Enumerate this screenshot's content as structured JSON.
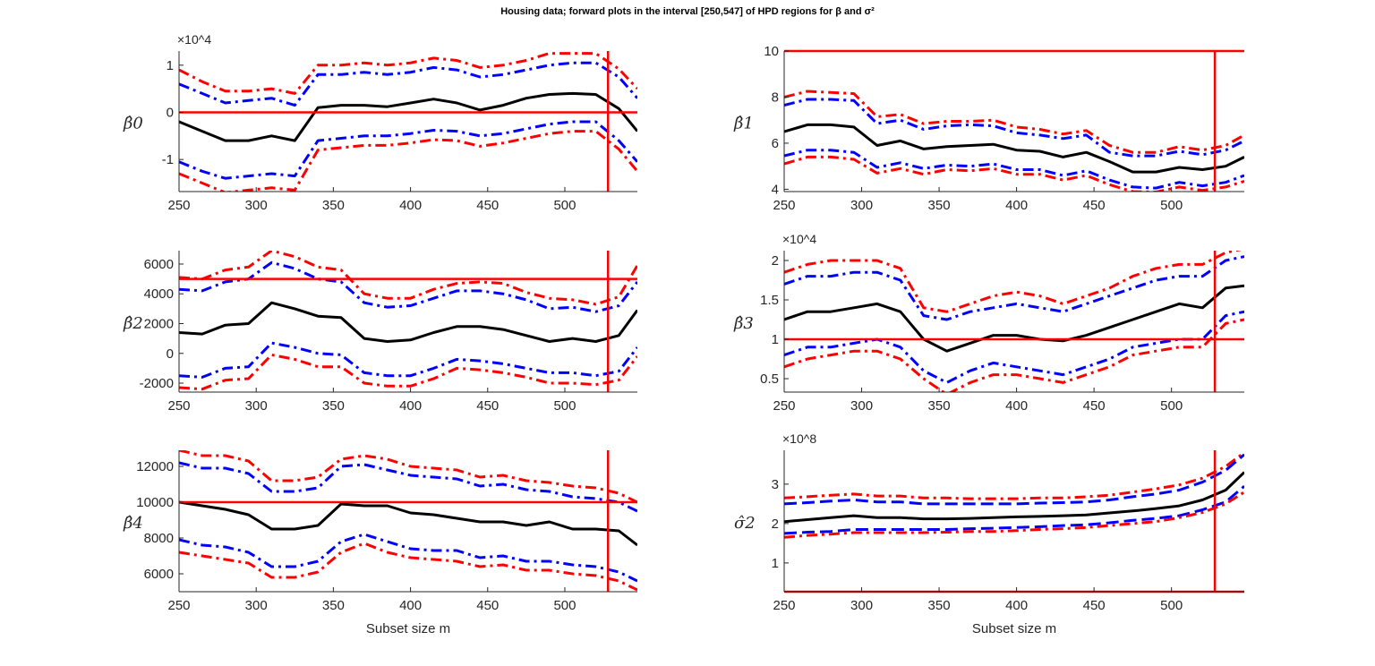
{
  "title": "Housing data; forward plots in the interval [250,547]  of HPD regions for β and σ²",
  "chart_data": [
    {
      "type": "line",
      "ylabel": "β̂0",
      "exponent": "×10^4",
      "xlabel": "",
      "xlim": [
        250,
        547
      ],
      "ylim": [
        -1.68,
        1.3
      ],
      "xticks": [
        250,
        300,
        350,
        400,
        450,
        500
      ],
      "yticks": [
        -1,
        0,
        1
      ],
      "hline": 0,
      "vline": 528,
      "band_style": "dashdot",
      "x": [
        250,
        265,
        280,
        295,
        310,
        325,
        340,
        355,
        370,
        385,
        400,
        415,
        430,
        445,
        460,
        475,
        490,
        505,
        520,
        535,
        547
      ],
      "series": [
        {
          "role": "upper99",
          "color": "#ff0000",
          "values": [
            0.9,
            0.65,
            0.45,
            0.45,
            0.5,
            0.4,
            1.0,
            1.0,
            1.05,
            1.0,
            1.05,
            1.15,
            1.1,
            0.95,
            1.0,
            1.1,
            1.25,
            1.25,
            1.25,
            0.92,
            0.5
          ]
        },
        {
          "role": "upper95",
          "color": "#0000ff",
          "values": [
            0.6,
            0.4,
            0.2,
            0.25,
            0.3,
            0.15,
            0.8,
            0.8,
            0.85,
            0.8,
            0.85,
            0.95,
            0.9,
            0.75,
            0.8,
            0.9,
            1.0,
            1.05,
            1.05,
            0.75,
            0.3
          ]
        },
        {
          "role": "estimate",
          "color": "#000000",
          "values": [
            -0.2,
            -0.4,
            -0.6,
            -0.6,
            -0.5,
            -0.6,
            0.1,
            0.15,
            0.15,
            0.12,
            0.2,
            0.28,
            0.2,
            0.05,
            0.15,
            0.3,
            0.38,
            0.4,
            0.38,
            0.08,
            -0.4
          ]
        },
        {
          "role": "lower95",
          "color": "#0000ff",
          "values": [
            -1.05,
            -1.25,
            -1.4,
            -1.35,
            -1.3,
            -1.35,
            -0.6,
            -0.55,
            -0.5,
            -0.5,
            -0.45,
            -0.38,
            -0.4,
            -0.5,
            -0.45,
            -0.35,
            -0.25,
            -0.2,
            -0.2,
            -0.6,
            -1.05
          ]
        },
        {
          "role": "lower99",
          "color": "#ff0000",
          "values": [
            -1.3,
            -1.5,
            -1.7,
            -1.65,
            -1.6,
            -1.65,
            -0.8,
            -0.75,
            -0.7,
            -0.7,
            -0.65,
            -0.58,
            -0.6,
            -0.72,
            -0.65,
            -0.55,
            -0.45,
            -0.4,
            -0.4,
            -0.78,
            -1.25
          ]
        }
      ]
    },
    {
      "type": "line",
      "ylabel": "β̂1",
      "exponent": "",
      "xlabel": "",
      "xlim": [
        250,
        547
      ],
      "ylim": [
        3.9,
        10
      ],
      "xticks": [
        250,
        300,
        350,
        400,
        450,
        500
      ],
      "yticks": [
        4,
        6,
        8,
        10
      ],
      "hline": 10,
      "vline": 528,
      "band_style": "dashdot",
      "x": [
        250,
        265,
        280,
        295,
        310,
        325,
        340,
        355,
        370,
        385,
        400,
        415,
        430,
        445,
        460,
        475,
        490,
        505,
        520,
        535,
        547
      ],
      "series": [
        {
          "role": "upper99",
          "color": "#ff0000",
          "values": [
            8.0,
            8.25,
            8.2,
            8.15,
            7.15,
            7.25,
            6.85,
            6.95,
            6.95,
            7.0,
            6.7,
            6.6,
            6.4,
            6.55,
            5.9,
            5.6,
            5.6,
            5.85,
            5.7,
            5.9,
            6.35
          ]
        },
        {
          "role": "upper95",
          "color": "#0000ff",
          "values": [
            7.65,
            7.9,
            7.9,
            7.85,
            6.85,
            7.0,
            6.6,
            6.75,
            6.8,
            6.75,
            6.45,
            6.35,
            6.2,
            6.35,
            5.6,
            5.45,
            5.45,
            5.65,
            5.5,
            5.7,
            6.1
          ]
        },
        {
          "role": "estimate",
          "color": "#000000",
          "values": [
            6.5,
            6.8,
            6.8,
            6.7,
            5.9,
            6.1,
            5.75,
            5.85,
            5.9,
            5.95,
            5.7,
            5.65,
            5.4,
            5.6,
            5.2,
            4.75,
            4.75,
            4.95,
            4.85,
            5.0,
            5.4
          ]
        },
        {
          "role": "lower95",
          "color": "#0000ff",
          "values": [
            5.45,
            5.7,
            5.7,
            5.6,
            4.95,
            5.15,
            4.9,
            5.05,
            5.0,
            5.1,
            4.85,
            4.85,
            4.6,
            4.8,
            4.4,
            4.1,
            4.05,
            4.3,
            4.15,
            4.3,
            4.6
          ]
        },
        {
          "role": "lower99",
          "color": "#ff0000",
          "values": [
            5.1,
            5.4,
            5.4,
            5.3,
            4.7,
            4.9,
            4.65,
            4.85,
            4.8,
            4.9,
            4.65,
            4.65,
            4.4,
            4.6,
            4.2,
            3.9,
            3.88,
            4.1,
            3.95,
            4.1,
            4.35
          ]
        }
      ]
    },
    {
      "type": "line",
      "ylabel": "β̂2",
      "exponent": "",
      "xlabel": "",
      "xlim": [
        250,
        547
      ],
      "ylim": [
        -2600,
        6900
      ],
      "xticks": [
        250,
        300,
        350,
        400,
        450,
        500
      ],
      "yticks": [
        -2000,
        0,
        2000,
        4000,
        6000
      ],
      "hline": 5000,
      "vline": 528,
      "band_style": "dashdot",
      "x": [
        250,
        265,
        280,
        295,
        310,
        325,
        340,
        355,
        370,
        385,
        400,
        415,
        430,
        445,
        460,
        475,
        490,
        505,
        520,
        535,
        547
      ],
      "series": [
        {
          "role": "upper99",
          "color": "#ff0000",
          "values": [
            5100,
            5000,
            5600,
            5800,
            6900,
            6500,
            5800,
            5600,
            4000,
            3700,
            3700,
            4300,
            4700,
            4800,
            4700,
            4100,
            3700,
            3600,
            3300,
            3800,
            5900
          ]
        },
        {
          "role": "upper95",
          "color": "#0000ff",
          "values": [
            4300,
            4200,
            4800,
            5000,
            6100,
            5700,
            5000,
            4800,
            3400,
            3100,
            3200,
            3700,
            4200,
            4200,
            4000,
            3600,
            3000,
            3100,
            2800,
            3200,
            4800
          ]
        },
        {
          "role": "estimate",
          "color": "#000000",
          "values": [
            1400,
            1300,
            1900,
            2000,
            3400,
            3000,
            2500,
            2400,
            1000,
            800,
            900,
            1400,
            1800,
            1800,
            1600,
            1200,
            800,
            1000,
            800,
            1200,
            2900
          ]
        },
        {
          "role": "lower95",
          "color": "#0000ff",
          "values": [
            -1500,
            -1600,
            -1000,
            -900,
            700,
            400,
            0,
            -100,
            -1300,
            -1500,
            -1500,
            -1000,
            -400,
            -500,
            -700,
            -1000,
            -1300,
            -1300,
            -1500,
            -1200,
            400
          ]
        },
        {
          "role": "lower99",
          "color": "#ff0000",
          "values": [
            -2300,
            -2400,
            -1800,
            -1700,
            -100,
            -400,
            -900,
            -900,
            -2000,
            -2200,
            -2200,
            -1700,
            -1000,
            -1100,
            -1300,
            -1600,
            -2000,
            -2000,
            -2100,
            -1800,
            -200
          ]
        }
      ]
    },
    {
      "type": "line",
      "ylabel": "β̂3",
      "exponent": "×10^4",
      "xlabel": "",
      "xlim": [
        250,
        547
      ],
      "ylim": [
        0.33,
        2.125
      ],
      "xticks": [
        250,
        300,
        350,
        400,
        450,
        500
      ],
      "yticks": [
        0.5,
        1,
        1.5,
        2
      ],
      "hline": 1,
      "vline": 528,
      "band_style": "dashdot",
      "x": [
        250,
        265,
        280,
        295,
        310,
        325,
        340,
        355,
        370,
        385,
        400,
        415,
        430,
        445,
        460,
        475,
        490,
        505,
        520,
        535,
        547
      ],
      "series": [
        {
          "role": "upper99",
          "color": "#ff0000",
          "values": [
            1.85,
            1.95,
            2.0,
            2.0,
            2.0,
            1.9,
            1.4,
            1.35,
            1.45,
            1.55,
            1.6,
            1.55,
            1.45,
            1.55,
            1.65,
            1.8,
            1.9,
            1.95,
            1.95,
            2.1,
            2.15
          ]
        },
        {
          "role": "upper95",
          "color": "#0000ff",
          "values": [
            1.7,
            1.8,
            1.8,
            1.85,
            1.85,
            1.75,
            1.3,
            1.25,
            1.35,
            1.4,
            1.45,
            1.4,
            1.35,
            1.45,
            1.55,
            1.65,
            1.75,
            1.8,
            1.8,
            2.0,
            2.05
          ]
        },
        {
          "role": "estimate",
          "color": "#000000",
          "values": [
            1.25,
            1.35,
            1.35,
            1.4,
            1.45,
            1.35,
            1.0,
            0.85,
            0.95,
            1.05,
            1.05,
            1.0,
            0.98,
            1.05,
            1.15,
            1.25,
            1.35,
            1.45,
            1.4,
            1.65,
            1.68
          ]
        },
        {
          "role": "lower95",
          "color": "#0000ff",
          "values": [
            0.8,
            0.9,
            0.9,
            0.95,
            1.0,
            0.9,
            0.6,
            0.45,
            0.6,
            0.7,
            0.65,
            0.6,
            0.55,
            0.65,
            0.75,
            0.9,
            0.95,
            1.0,
            1.0,
            1.3,
            1.35
          ]
        },
        {
          "role": "lower99",
          "color": "#ff0000",
          "values": [
            0.65,
            0.75,
            0.8,
            0.85,
            0.85,
            0.75,
            0.5,
            0.3,
            0.45,
            0.55,
            0.55,
            0.5,
            0.45,
            0.55,
            0.65,
            0.8,
            0.85,
            0.9,
            0.9,
            1.2,
            1.25
          ]
        }
      ]
    },
    {
      "type": "line",
      "ylabel": "β̂4",
      "exponent": "",
      "xlabel": "Subset size m",
      "xlim": [
        250,
        547
      ],
      "ylim": [
        5000,
        12900
      ],
      "xticks": [
        250,
        300,
        350,
        400,
        450,
        500
      ],
      "yticks": [
        6000,
        8000,
        10000,
        12000
      ],
      "hline": 10000,
      "vline": 528,
      "band_style": "dashdot",
      "x": [
        250,
        265,
        280,
        295,
        310,
        325,
        340,
        355,
        370,
        385,
        400,
        415,
        430,
        445,
        460,
        475,
        490,
        505,
        520,
        535,
        547
      ],
      "series": [
        {
          "role": "upper99",
          "color": "#ff0000",
          "values": [
            12900,
            12600,
            12600,
            12300,
            11200,
            11200,
            11400,
            12400,
            12600,
            12400,
            12000,
            11900,
            11800,
            11400,
            11500,
            11200,
            11100,
            10900,
            10800,
            10500,
            10000
          ]
        },
        {
          "role": "upper95",
          "color": "#0000ff",
          "values": [
            12200,
            11900,
            11900,
            11600,
            10600,
            10600,
            10800,
            12000,
            12100,
            11800,
            11500,
            11400,
            11300,
            10900,
            11000,
            10700,
            10600,
            10300,
            10200,
            10000,
            9500
          ]
        },
        {
          "role": "estimate",
          "color": "#000000",
          "values": [
            10000,
            9800,
            9600,
            9300,
            8500,
            8500,
            8700,
            9900,
            9800,
            9800,
            9400,
            9300,
            9100,
            8900,
            8900,
            8700,
            8900,
            8500,
            8500,
            8400,
            7600
          ]
        },
        {
          "role": "lower95",
          "color": "#0000ff",
          "values": [
            7900,
            7600,
            7500,
            7200,
            6400,
            6400,
            6700,
            7800,
            8200,
            7800,
            7400,
            7300,
            7300,
            6900,
            7000,
            6700,
            6700,
            6500,
            6400,
            6100,
            5600
          ]
        },
        {
          "role": "lower99",
          "color": "#ff0000",
          "values": [
            7200,
            7000,
            6800,
            6600,
            5800,
            5800,
            6100,
            7200,
            7700,
            7200,
            6900,
            6800,
            6700,
            6400,
            6500,
            6200,
            6200,
            6000,
            5900,
            5600,
            5100
          ]
        }
      ]
    },
    {
      "type": "line",
      "ylabel": "σ̂2",
      "exponent": "×10^8",
      "xlabel": "Subset size m",
      "xlim": [
        250,
        547
      ],
      "ylim": [
        0.27,
        3.86
      ],
      "xticks": [
        250,
        300,
        350,
        400,
        450,
        500
      ],
      "yticks": [
        1,
        2,
        3
      ],
      "hline": 0.27,
      "vline": 528,
      "band_style": "dashed",
      "x": [
        250,
        265,
        280,
        295,
        310,
        325,
        340,
        355,
        370,
        385,
        400,
        415,
        430,
        445,
        460,
        475,
        490,
        505,
        520,
        535,
        547
      ],
      "series": [
        {
          "role": "upper99",
          "color": "#ff0000",
          "values": [
            2.65,
            2.68,
            2.72,
            2.75,
            2.7,
            2.7,
            2.65,
            2.65,
            2.63,
            2.63,
            2.63,
            2.65,
            2.65,
            2.68,
            2.72,
            2.8,
            2.88,
            2.98,
            3.15,
            3.45,
            3.8
          ]
        },
        {
          "role": "upper95",
          "color": "#0000ff",
          "values": [
            2.5,
            2.53,
            2.57,
            2.6,
            2.55,
            2.55,
            2.5,
            2.5,
            2.5,
            2.5,
            2.5,
            2.52,
            2.53,
            2.55,
            2.6,
            2.68,
            2.75,
            2.85,
            3.05,
            3.35,
            3.75
          ]
        },
        {
          "role": "estimate",
          "color": "#000000",
          "values": [
            2.05,
            2.1,
            2.15,
            2.2,
            2.15,
            2.15,
            2.12,
            2.12,
            2.13,
            2.15,
            2.17,
            2.18,
            2.2,
            2.22,
            2.27,
            2.32,
            2.38,
            2.45,
            2.6,
            2.85,
            3.3
          ]
        },
        {
          "role": "lower95",
          "color": "#0000ff",
          "values": [
            1.75,
            1.78,
            1.8,
            1.85,
            1.85,
            1.85,
            1.85,
            1.85,
            1.87,
            1.88,
            1.9,
            1.92,
            1.95,
            1.97,
            2.02,
            2.08,
            2.13,
            2.2,
            2.35,
            2.55,
            2.95
          ]
        },
        {
          "role": "lower99",
          "color": "#ff0000",
          "values": [
            1.65,
            1.7,
            1.73,
            1.77,
            1.77,
            1.77,
            1.77,
            1.78,
            1.8,
            1.8,
            1.82,
            1.85,
            1.87,
            1.9,
            1.95,
            2.0,
            2.05,
            2.15,
            2.28,
            2.5,
            2.8
          ]
        }
      ]
    }
  ]
}
